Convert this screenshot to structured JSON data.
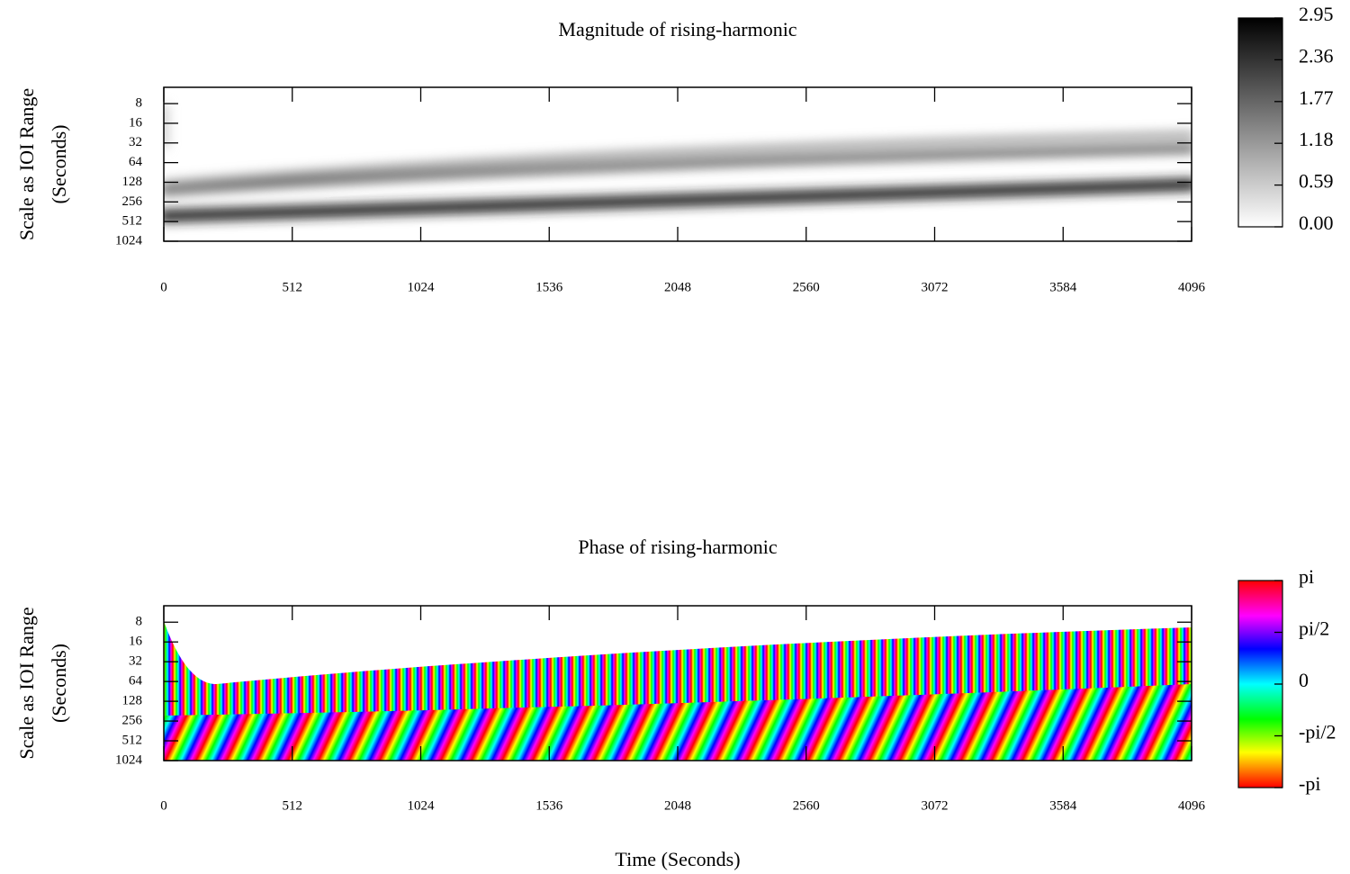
{
  "chart_data": [
    {
      "type": "heatmap",
      "title": "Magnitude of rising-harmonic",
      "ylabel": [
        "Scale as IOI Range",
        "(Seconds)"
      ],
      "xlim": [
        0,
        4096
      ],
      "xticks": [
        0,
        512,
        1024,
        1536,
        2048,
        2560,
        3072,
        3584,
        4096
      ],
      "yscale": "log",
      "ylim": [
        4.5,
        1024
      ],
      "yticks": [
        8,
        16,
        32,
        64,
        128,
        256,
        512,
        1024
      ],
      "colormap": "gray",
      "clim": [
        0,
        2.95
      ],
      "cticks": [
        {
          "value": 0,
          "label": "0.00"
        },
        0.59,
        1.18,
        1.77,
        2.36,
        2.95
      ]
    },
    {
      "type": "heatmap",
      "title": "Phase of rising-harmonic",
      "ylabel": [
        "Scale as IOI Range",
        "(Seconds)"
      ],
      "xlabel": "Time (Seconds)",
      "xlim": [
        0,
        4096
      ],
      "xticks": [
        0,
        512,
        1024,
        1536,
        2048,
        2560,
        3072,
        3584,
        4096
      ],
      "yscale": "log",
      "ylim": [
        4.5,
        1024
      ],
      "yticks": [
        8,
        16,
        32,
        64,
        128,
        256,
        512,
        1024
      ],
      "colormap": "hsv",
      "clim": [
        -3.14159,
        3.14159
      ],
      "cticks": [
        {
          "value": 3.14159,
          "label": "pi"
        },
        {
          "value": 1.5708,
          "label": "pi/2"
        },
        0,
        {
          "value": -1.5708,
          "label": "-pi/2"
        },
        {
          "value": -3.14159,
          "label": "-pi"
        }
      ]
    }
  ]
}
